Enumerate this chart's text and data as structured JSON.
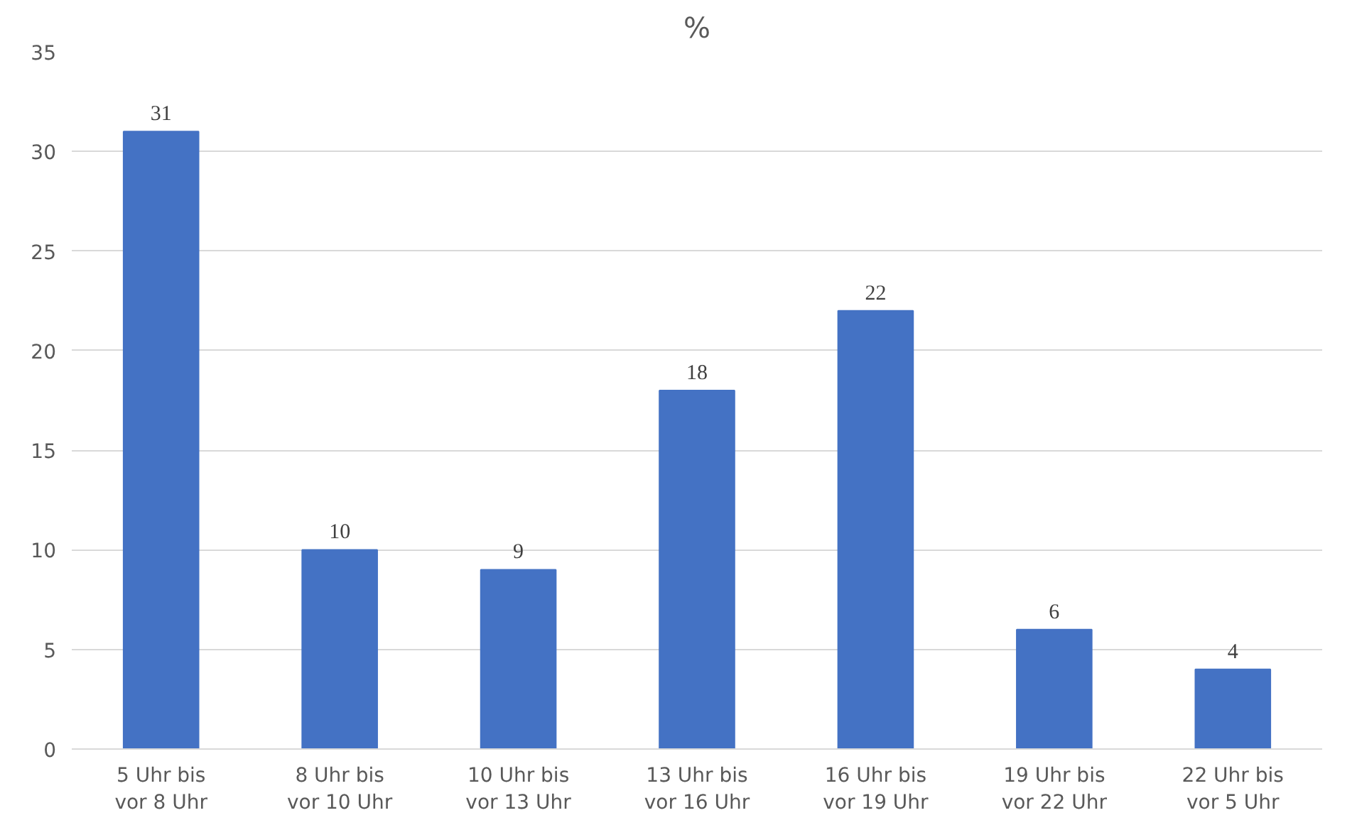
{
  "chart_data": {
    "type": "bar",
    "title": "%",
    "categories": [
      "5 Uhr bis\nvor 8 Uhr",
      "8 Uhr bis\nvor 10 Uhr",
      "10 Uhr bis\nvor 13 Uhr",
      "13 Uhr bis\nvor 16 Uhr",
      "16 Uhr bis\nvor 19 Uhr",
      "19 Uhr bis\nvor 22 Uhr",
      "22 Uhr bis\nvor 5 Uhr"
    ],
    "values": [
      31,
      10,
      9,
      18,
      22,
      6,
      4
    ],
    "color": "#4472c4",
    "ylim": [
      0,
      35
    ],
    "yticks": [
      0,
      5,
      10,
      15,
      20,
      25,
      30,
      35
    ],
    "grid": "y",
    "data_labels": true
  }
}
